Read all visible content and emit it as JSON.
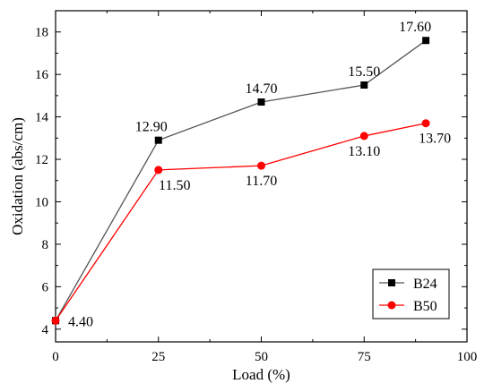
{
  "chart_data": {
    "type": "line",
    "xlabel": "Load (%)",
    "ylabel": "Oxidation (abs/cm)",
    "xlim": [
      0,
      100
    ],
    "ylim": [
      3.4,
      19.0
    ],
    "xticks": [
      0,
      25,
      50,
      75,
      100
    ],
    "yticks": [
      4,
      6,
      8,
      10,
      12,
      14,
      16,
      18
    ],
    "grid": false,
    "legend_position": "bottom-right",
    "series": [
      {
        "name": "B24",
        "color": "#555555",
        "marker_color": "#000000",
        "marker": "square",
        "x": [
          0,
          25,
          50,
          75,
          90
        ],
        "y": [
          4.4,
          12.9,
          14.7,
          15.5,
          17.6
        ],
        "labels": [
          "",
          "12.90",
          "14.70",
          "15.50",
          "17.60"
        ]
      },
      {
        "name": "B50",
        "color": "#ff0000",
        "marker_color": "#ff0000",
        "marker": "circle",
        "x": [
          0,
          25,
          50,
          75,
          90
        ],
        "y": [
          4.4,
          11.5,
          11.7,
          13.1,
          13.7
        ],
        "labels": [
          "4.40",
          "11.50",
          "11.70",
          "13.10",
          "13.70"
        ]
      }
    ]
  }
}
